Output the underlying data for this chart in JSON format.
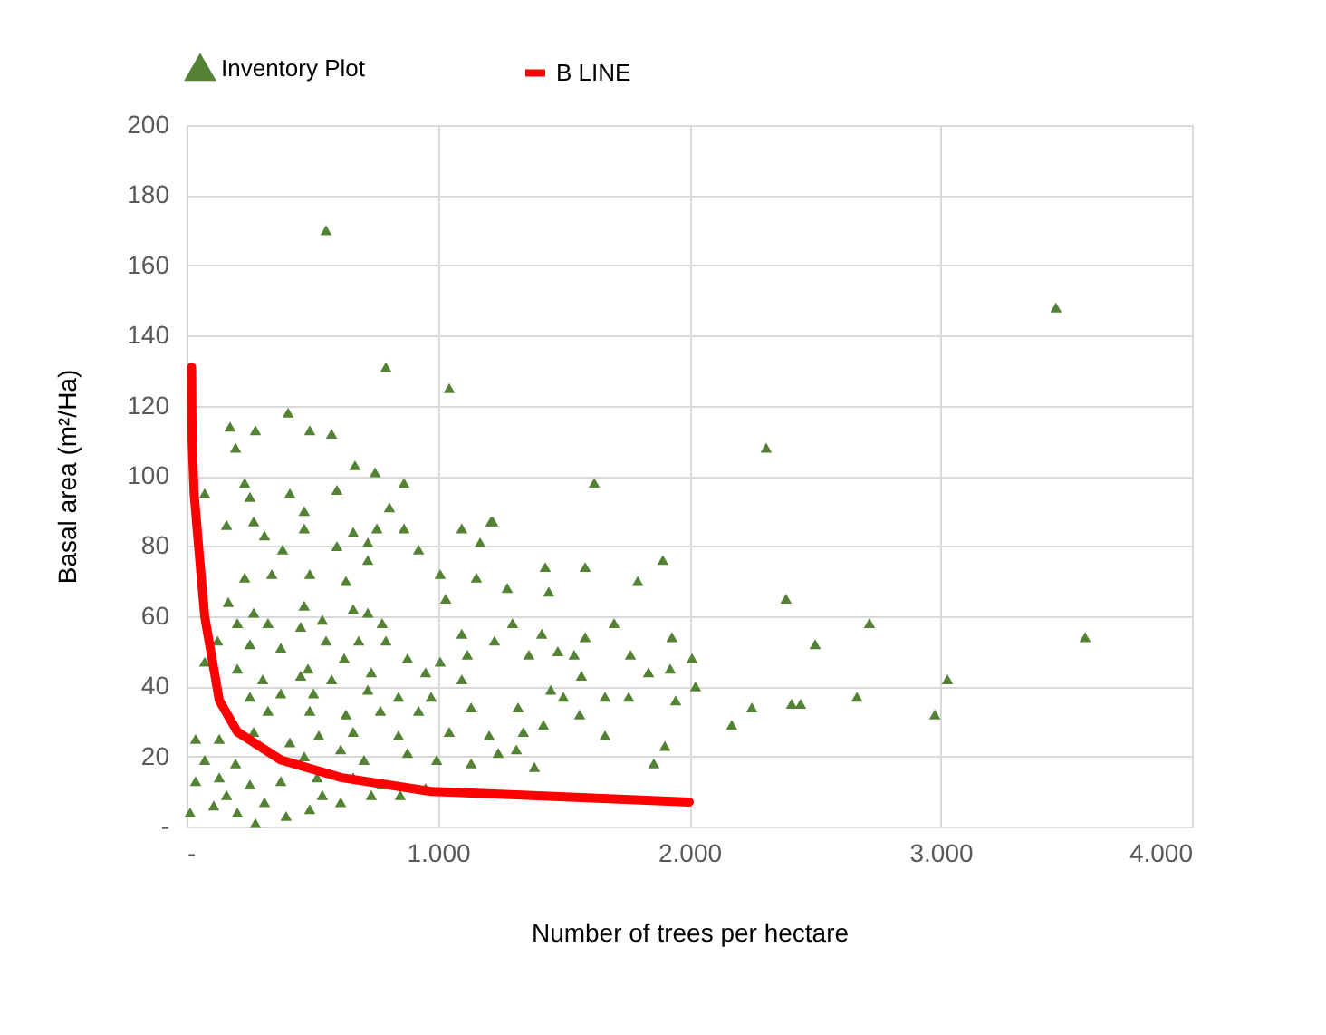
{
  "chart_data": {
    "type": "scatter",
    "xlabel": "Number of trees per hectare",
    "ylabel": "Basal area (m²/Ha)",
    "xlim": [
      0,
      4000
    ],
    "ylim": [
      0,
      200
    ],
    "xticks": [
      {
        "value": 0,
        "label": "-"
      },
      {
        "value": 1000,
        "label": "1.000"
      },
      {
        "value": 2000,
        "label": "2.000"
      },
      {
        "value": 3000,
        "label": "3.000"
      },
      {
        "value": 4000,
        "label": "4.000"
      }
    ],
    "yticks": [
      {
        "value": 0,
        "label": "-"
      },
      20,
      40,
      60,
      80,
      100,
      120,
      140,
      160,
      180,
      200
    ],
    "grid": true,
    "legend": "top",
    "series": [
      {
        "name": "Inventory Plot",
        "type": "scatter",
        "marker": "triangle",
        "color": "#548235",
        "x": [
          555,
          793,
          1045,
          3459,
          3575,
          2306,
          2385,
          2977,
          3027,
          2249,
          2407,
          2443,
          2667,
          2501,
          2717,
          1622,
          1218,
          1895,
          1427,
          1586,
          1276,
          1441,
          1795,
          1701,
          1297,
          1413,
          1586,
          1931,
          1225,
          1362,
          1477,
          1542,
          1766,
          2011,
          1571,
          1838,
          1924,
          1449,
          1499,
          1665,
          1759,
          1946,
          2025,
          1319,
          1564,
          2169,
          1204,
          1340,
          1420,
          1665,
          1903,
          1312,
          1384,
          1859,
          173,
          274,
          404,
          490,
          577,
          195,
          670,
          750,
          231,
          72,
          411,
          598,
          865,
          252,
          468,
          807,
          159,
          267,
          468,
          663,
          757,
          865,
          1095,
          1211,
          310,
          598,
          721,
          382,
          923,
          1168,
          721,
          231,
          339,
          490,
          634,
          1009,
          1153,
          166,
          267,
          468,
          663,
          721,
          1031,
          202,
          324,
          454,
          540,
          778,
          1095,
          123,
          252,
          375,
          555,
          685,
          793,
          72,
          202,
          483,
          627,
          879,
          1009,
          1117,
          303,
          454,
          577,
          735,
          951,
          1095,
          252,
          375,
          505,
          721,
          843,
          973,
          324,
          490,
          634,
          771,
          923,
          1132,
          36,
          130,
          267,
          411,
          526,
          663,
          843,
          1045,
          72,
          195,
          468,
          613,
          706,
          879,
          995,
          1132,
          1240,
          36,
          130,
          252,
          375,
          519,
          663,
          778,
          951,
          14,
          108,
          202,
          310,
          396,
          490,
          613,
          735,
          850,
          274,
          159,
          540
        ],
        "values": [
          170,
          131,
          125,
          148,
          54,
          108,
          65,
          32,
          42,
          34,
          35,
          35,
          37,
          52,
          58,
          98,
          87,
          76,
          74,
          74,
          68,
          67,
          70,
          58,
          58,
          55,
          54,
          54,
          53,
          49,
          50,
          49,
          49,
          48,
          43,
          44,
          45,
          39,
          37,
          37,
          37,
          36,
          40,
          34,
          32,
          29,
          26,
          27,
          29,
          26,
          23,
          22,
          17,
          18,
          114,
          113,
          118,
          113,
          112,
          108,
          103,
          101,
          98,
          95,
          95,
          96,
          98,
          94,
          90,
          91,
          86,
          87,
          85,
          84,
          85,
          85,
          85,
          87,
          83,
          80,
          81,
          79,
          79,
          81,
          76,
          71,
          72,
          72,
          70,
          72,
          71,
          64,
          61,
          63,
          62,
          61,
          65,
          58,
          58,
          57,
          59,
          58,
          55,
          53,
          52,
          51,
          53,
          53,
          53,
          47,
          45,
          45,
          48,
          48,
          47,
          49,
          42,
          43,
          42,
          44,
          44,
          42,
          37,
          38,
          38,
          39,
          37,
          37,
          33,
          33,
          32,
          33,
          33,
          34,
          25,
          25,
          27,
          24,
          26,
          27,
          26,
          27,
          19,
          18,
          20,
          22,
          19,
          21,
          19,
          18,
          21,
          13,
          14,
          12,
          13,
          14,
          14,
          12,
          11,
          4,
          6,
          4,
          7,
          3,
          5,
          7,
          9,
          9,
          1,
          9,
          9
        ]
      },
      {
        "name": "B LINE",
        "type": "line",
        "color": "#ff0000",
        "line_style": "solid",
        "x": [
          20,
          22,
          30,
          50,
          72,
          130,
          202,
          375,
          613,
          973,
          1333,
          2000
        ],
        "values": [
          131,
          110,
          95,
          78,
          60,
          36,
          27,
          19,
          14,
          10,
          9,
          7
        ]
      }
    ]
  }
}
